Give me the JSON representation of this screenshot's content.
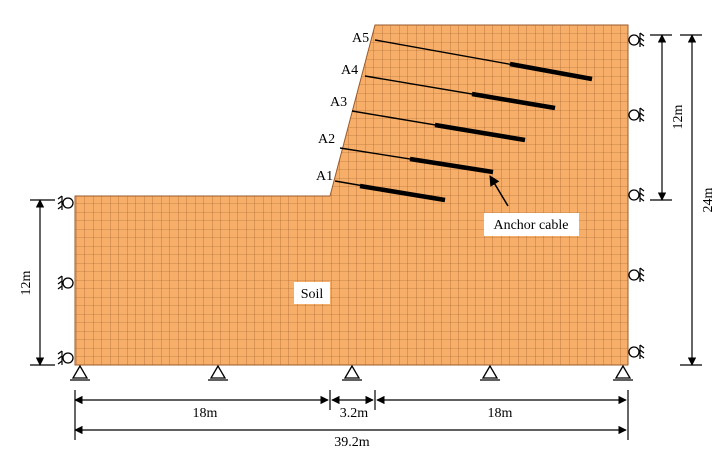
{
  "anchors": [
    "A1",
    "A2",
    "A3",
    "A4",
    "A5"
  ],
  "callout": "Anchor cable",
  "region": "Soil",
  "dimensions": {
    "left_height": "12m",
    "right_upper_height": "12m",
    "right_total_height": "24m",
    "bottom_left": "18m",
    "bottom_middle": "3.2m",
    "bottom_right": "18m",
    "bottom_total": "39.2m"
  }
}
